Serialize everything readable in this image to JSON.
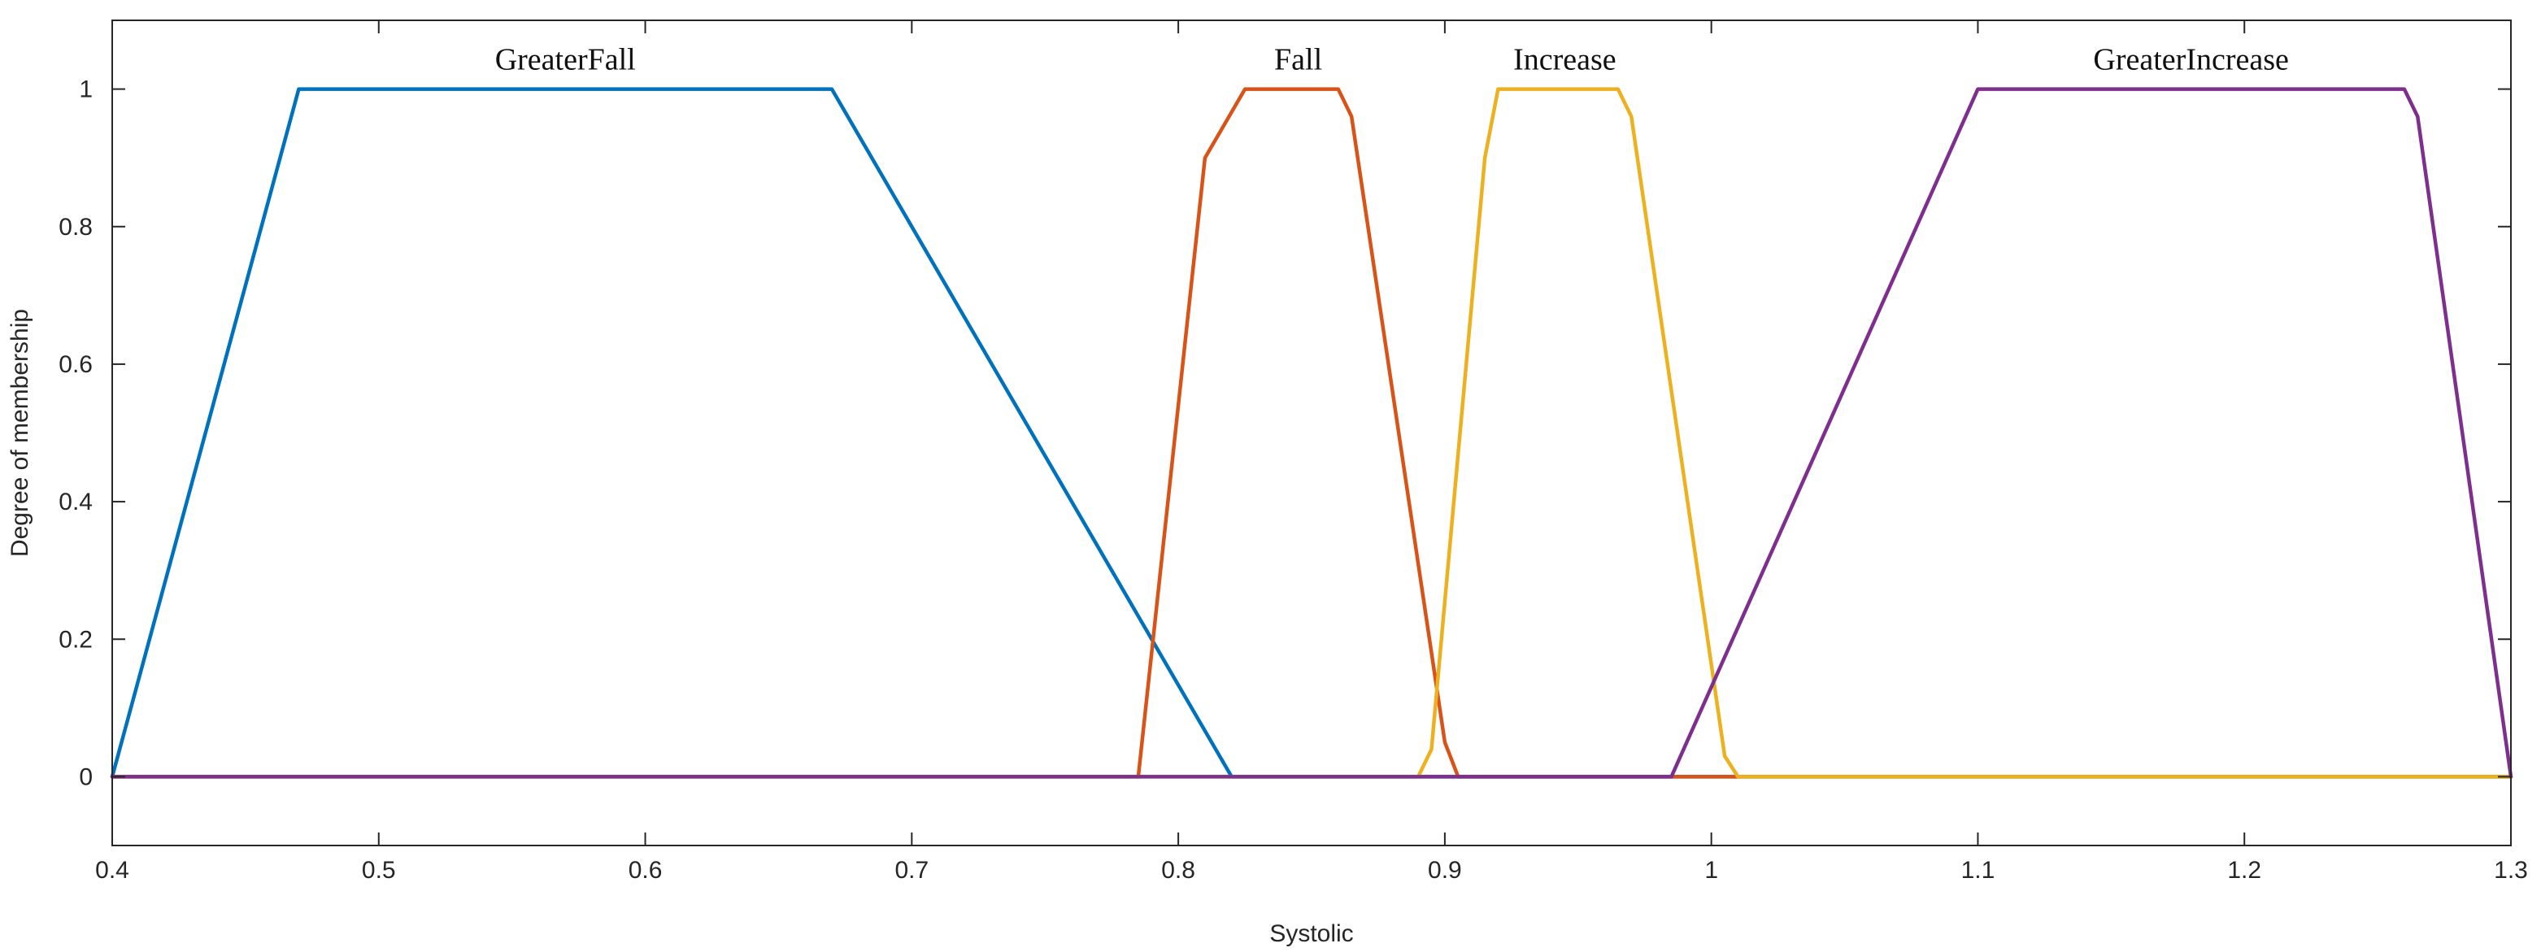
{
  "chart_data": {
    "type": "line",
    "xlabel": "Systolic",
    "ylabel": "Degree of membership",
    "xlim": [
      0.4,
      1.3
    ],
    "ylim": [
      -0.1,
      1.1
    ],
    "xticks": [
      "0.4",
      "0.5",
      "0.6",
      "0.7",
      "0.8",
      "0.9",
      "1",
      "1.1",
      "1.2",
      "1.3"
    ],
    "yticks": [
      "0",
      "0.2",
      "0.4",
      "0.6",
      "0.8",
      "1"
    ],
    "grid": false,
    "series": [
      {
        "name": "GreaterFall",
        "color": "#0072BD",
        "points": [
          [
            0.4,
            0
          ],
          [
            0.47,
            1
          ],
          [
            0.67,
            1
          ],
          [
            0.82,
            0
          ],
          [
            1.3,
            0
          ]
        ]
      },
      {
        "name": "Fall",
        "color": "#D95319",
        "points": [
          [
            0.4,
            0
          ],
          [
            0.785,
            0
          ],
          [
            0.81,
            0.9
          ],
          [
            0.825,
            1
          ],
          [
            0.86,
            1
          ],
          [
            0.865,
            0.96
          ],
          [
            0.9,
            0.05
          ],
          [
            0.905,
            0
          ],
          [
            1.3,
            0
          ]
        ]
      },
      {
        "name": "Increase",
        "color": "#EDB120",
        "points": [
          [
            0.4,
            0
          ],
          [
            0.89,
            0
          ],
          [
            0.895,
            0.04
          ],
          [
            0.915,
            0.9
          ],
          [
            0.92,
            1
          ],
          [
            0.965,
            1
          ],
          [
            0.97,
            0.96
          ],
          [
            1.005,
            0.03
          ],
          [
            1.01,
            0
          ],
          [
            1.3,
            0
          ]
        ]
      },
      {
        "name": "GreaterIncrease",
        "color": "#7E2F8E",
        "points": [
          [
            0.4,
            0
          ],
          [
            0.985,
            0
          ],
          [
            1.1,
            1
          ],
          [
            1.26,
            1
          ],
          [
            1.265,
            0.96
          ],
          [
            1.3,
            0
          ]
        ]
      }
    ],
    "annotations": [
      {
        "text": "GreaterFall",
        "x": 0.57,
        "y": 1.045
      },
      {
        "text": "Fall",
        "x": 0.845,
        "y": 1.045
      },
      {
        "text": "Increase",
        "x": 0.945,
        "y": 1.045
      },
      {
        "text": "GreaterIncrease",
        "x": 1.18,
        "y": 1.045
      }
    ]
  }
}
